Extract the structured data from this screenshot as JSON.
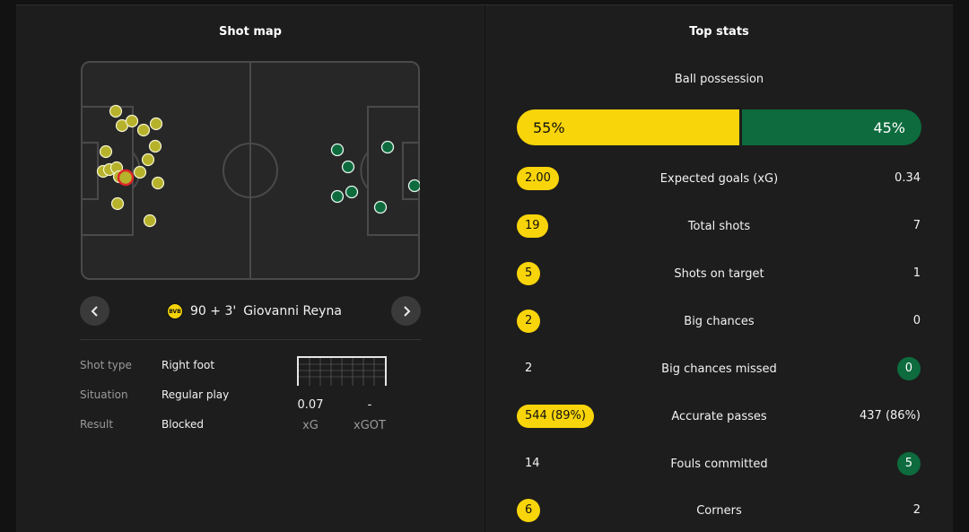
{
  "left": {
    "title": "Shot map",
    "current_shot": {
      "minute": "90 + 3'",
      "player": "Giovanni Reyna",
      "club_badge": "BVB"
    },
    "details": [
      {
        "label": "Shot type",
        "value": "Right foot"
      },
      {
        "label": "Situation",
        "value": "Regular play"
      },
      {
        "label": "Result",
        "value": "Blocked"
      }
    ],
    "xg": {
      "value": "0.07",
      "label": "xG"
    },
    "xgot": {
      "value": "-",
      "label": "xGOT"
    },
    "icons": {
      "prev": "chevron-left-icon",
      "next": "chevron-right-icon"
    }
  },
  "right": {
    "title": "Top stats",
    "possession": {
      "label": "Ball possession",
      "home": "55%",
      "away": "45%",
      "home_fraction": 0.55
    },
    "stats": [
      {
        "label": "Expected goals (xG)",
        "home": "2.00",
        "away": "0.34",
        "highlight": "home"
      },
      {
        "label": "Total shots",
        "home": "19",
        "away": "7",
        "highlight": "home"
      },
      {
        "label": "Shots on target",
        "home": "5",
        "away": "1",
        "highlight": "home"
      },
      {
        "label": "Big chances",
        "home": "2",
        "away": "0",
        "highlight": "home"
      },
      {
        "label": "Big chances missed",
        "home": "2",
        "away": "0",
        "highlight": "away"
      },
      {
        "label": "Accurate passes",
        "home": "544 (89%)",
        "away": "437 (86%)",
        "highlight": "home"
      },
      {
        "label": "Fouls committed",
        "home": "14",
        "away": "5",
        "highlight": "away"
      },
      {
        "label": "Corners",
        "home": "6",
        "away": "2",
        "highlight": "home"
      }
    ]
  },
  "colors": {
    "home": "#f8d40a",
    "away": "#0d6b3e",
    "background": "#121212",
    "panel": "#1d1d1d"
  }
}
